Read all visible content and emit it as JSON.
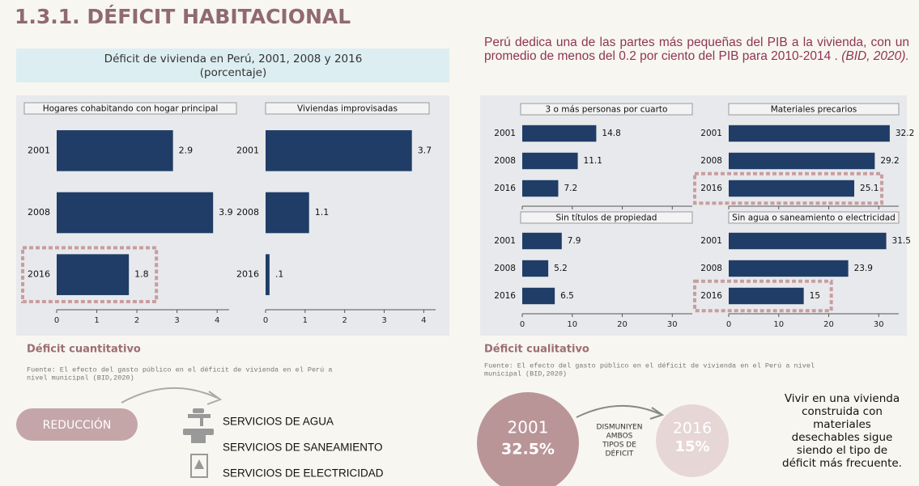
{
  "header": {
    "title": "1.3.1. DÉFICIT HABITACIONAL"
  },
  "intro": {
    "text": "Perú dedica una de las partes más pequeñas del PIB a la vivienda, con un promedio de menos del 0.2 por ciento del PIB para 2010-2014 .",
    "citation": "(BID, 2020)."
  },
  "left": {
    "subtitle": [
      "Déficit de vivienda en Perú, 2001, 2008 y 2016",
      "(porcentaje)"
    ],
    "section": "Déficit cuantitativo",
    "source": [
      "Fuente: El efecto del gasto público en el déficit de vivienda en el Perú a",
      "nivel municipal (BID,2020)"
    ]
  },
  "right": {
    "section": "Déficit cualitativo",
    "source": [
      "Fuente: El efecto del gasto público en el déficit de vivienda en el Perú a nivel",
      "municipal (BID,2020)"
    ]
  },
  "reduction": {
    "label": "REDUCCIÓN",
    "services": [
      "SERVICIOS DE AGUA",
      "SERVICIOS DE SANEAMIENTO",
      "SERVICIOS DE ELECTRICIDAD"
    ]
  },
  "comparison": {
    "from": {
      "year": "2001",
      "value": "32.5%"
    },
    "arrow": [
      "DISMUNIYEN",
      "AMBOS",
      "TIPOS DE",
      "DÉFICIT"
    ],
    "to": {
      "year": "2016",
      "value": "15%"
    },
    "note": [
      "Vivir en una vivienda",
      "construida con",
      "materiales",
      "desechables sigue",
      "siendo el tipo de",
      "déficit más frecuente."
    ]
  },
  "chart_data": [
    {
      "type": "bar",
      "orientation": "horizontal",
      "title": "Hogares cohabitando con hogar principal",
      "categories": [
        "2001",
        "2008",
        "2016"
      ],
      "values": [
        2.9,
        3.9,
        1.8
      ],
      "value_labels": [
        "2.9",
        "3.9",
        "1.8"
      ],
      "color": "#1f3d66",
      "xlim": [
        0,
        4.3
      ],
      "xticks": [
        0,
        1,
        2,
        3,
        4
      ]
    },
    {
      "type": "bar",
      "orientation": "horizontal",
      "title": "Viviendas improvisadas",
      "categories": [
        "2001",
        "2008",
        "2016"
      ],
      "values": [
        3.7,
        1.1,
        0.1
      ],
      "value_labels": [
        "3.7",
        "1.1",
        ".1"
      ],
      "color": "#1f3d66",
      "xlim": [
        0,
        4.3
      ],
      "xticks": [
        0,
        1,
        2,
        3,
        4
      ]
    },
    {
      "type": "bar",
      "orientation": "horizontal",
      "title": "3 o más personas por cuarto",
      "categories": [
        "2001",
        "2008",
        "2016"
      ],
      "values": [
        14.8,
        11.1,
        7.2
      ],
      "value_labels": [
        "14.8",
        "11.1",
        "7.2"
      ],
      "color": "#1f3d66",
      "xlim": [
        0,
        34
      ],
      "xticks": [
        0,
        10,
        20,
        30
      ]
    },
    {
      "type": "bar",
      "orientation": "horizontal",
      "title": "Materiales precarios",
      "categories": [
        "2001",
        "2008",
        "2016"
      ],
      "values": [
        32.2,
        29.2,
        25.1
      ],
      "value_labels": [
        "32.2",
        "29.2",
        "25.1"
      ],
      "color": "#1f3d66",
      "xlim": [
        0,
        34
      ],
      "xticks": [
        0,
        10,
        20,
        30
      ]
    },
    {
      "type": "bar",
      "orientation": "horizontal",
      "title": "Sin títulos de propiedad",
      "categories": [
        "2001",
        "2008",
        "2016"
      ],
      "values": [
        7.9,
        5.2,
        6.5
      ],
      "value_labels": [
        "7.9",
        "5.2",
        "6.5"
      ],
      "color": "#1f3d66",
      "xlim": [
        0,
        34
      ],
      "xticks": [
        0,
        10,
        20,
        30
      ]
    },
    {
      "type": "bar",
      "orientation": "horizontal",
      "title": "Sin agua o saneamiento o electricidad",
      "categories": [
        "2001",
        "2008",
        "2016"
      ],
      "values": [
        31.5,
        23.9,
        15
      ],
      "value_labels": [
        "31.5",
        "23.9",
        "15"
      ],
      "color": "#1f3d66",
      "xlim": [
        0,
        34
      ],
      "xticks": [
        0,
        10,
        20,
        30
      ]
    }
  ]
}
